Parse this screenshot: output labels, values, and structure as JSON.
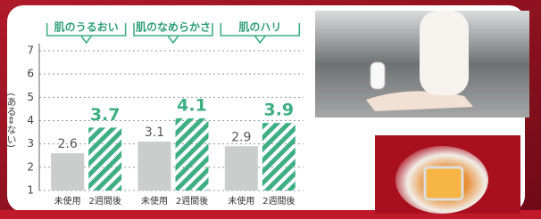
{
  "chart_data": {
    "type": "bar",
    "y_label": "(ある⇔ない)",
    "categories": [
      "肌のうるおい",
      "肌のなめらかさ",
      "肌のハリ"
    ],
    "series": [
      {
        "name": "未使用",
        "color": "#c9cdcb",
        "values": [
          2.6,
          3.1,
          2.9
        ]
      },
      {
        "name": "2週間後",
        "color": "#3fae84",
        "values": [
          3.7,
          4.1,
          3.9
        ]
      }
    ],
    "ylim": [
      1,
      7
    ],
    "yticks": [
      1,
      2,
      3,
      4,
      5,
      6,
      7
    ],
    "grid": true
  }
}
